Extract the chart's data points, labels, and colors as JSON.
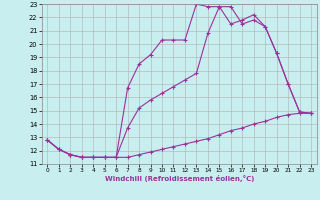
{
  "xlabel": "Windchill (Refroidissement éolien,°C)",
  "bg_color": "#c8eef0",
  "grid_color": "#b0b0b0",
  "line_color": "#993399",
  "xlim": [
    -0.5,
    23.5
  ],
  "ylim": [
    11,
    23
  ],
  "xticks": [
    0,
    1,
    2,
    3,
    4,
    5,
    6,
    7,
    8,
    9,
    10,
    11,
    12,
    13,
    14,
    15,
    16,
    17,
    18,
    19,
    20,
    21,
    22,
    23
  ],
  "yticks": [
    11,
    12,
    13,
    14,
    15,
    16,
    17,
    18,
    19,
    20,
    21,
    22,
    23
  ],
  "curve1_x": [
    0,
    1,
    2,
    3,
    4,
    5,
    6,
    7,
    8,
    9,
    10,
    11,
    12,
    13,
    14,
    15,
    16,
    17,
    18,
    19,
    20,
    21,
    22,
    23
  ],
  "curve1_y": [
    12.8,
    12.1,
    11.7,
    11.5,
    11.5,
    11.5,
    11.5,
    11.5,
    11.7,
    11.9,
    12.1,
    12.3,
    12.5,
    12.7,
    12.9,
    13.2,
    13.5,
    13.7,
    14.0,
    14.2,
    14.5,
    14.7,
    14.8,
    14.8
  ],
  "curve2_x": [
    0,
    1,
    2,
    3,
    4,
    5,
    6,
    7,
    8,
    9,
    10,
    11,
    12,
    13,
    14,
    15,
    16,
    17,
    18,
    19,
    20,
    21,
    22,
    23
  ],
  "curve2_y": [
    12.8,
    12.1,
    11.7,
    11.5,
    11.5,
    11.5,
    11.5,
    16.7,
    18.5,
    19.2,
    20.3,
    20.3,
    20.3,
    23.0,
    22.8,
    22.8,
    21.5,
    21.8,
    22.2,
    21.3,
    19.3,
    17.0,
    14.9,
    14.8
  ],
  "curve3_x": [
    0,
    1,
    2,
    3,
    4,
    5,
    6,
    7,
    8,
    9,
    10,
    11,
    12,
    13,
    14,
    15,
    16,
    17,
    18,
    19,
    20,
    21,
    22,
    23
  ],
  "curve3_y": [
    12.8,
    12.1,
    11.7,
    11.5,
    11.5,
    11.5,
    11.5,
    13.7,
    15.2,
    15.8,
    16.3,
    16.8,
    17.3,
    17.8,
    20.8,
    22.8,
    22.8,
    21.5,
    21.8,
    21.3,
    19.3,
    17.0,
    14.9,
    14.8
  ]
}
